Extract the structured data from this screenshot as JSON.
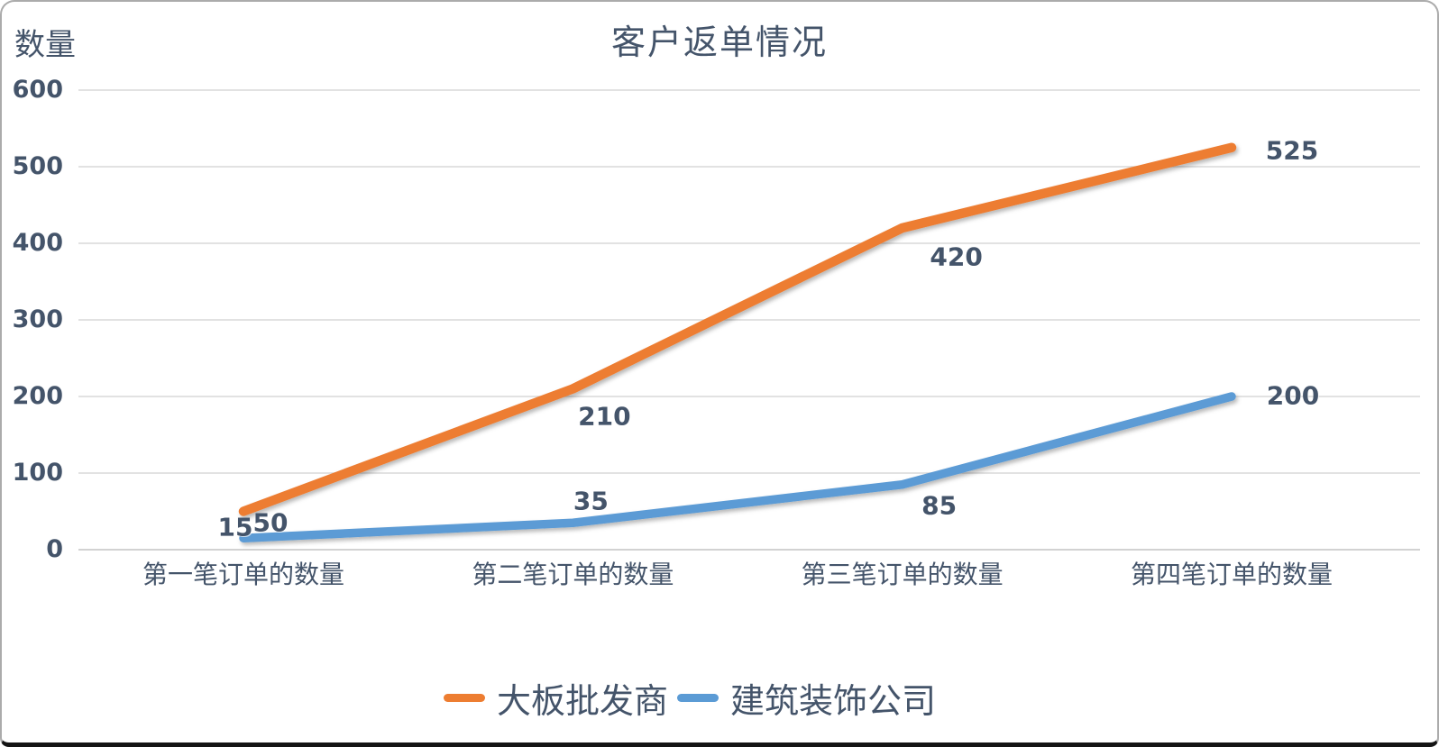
{
  "window": {
    "background": "#ffffff",
    "border_color": "#ababab",
    "bottom_edge_color": "#141414"
  },
  "colors": {
    "text": "#44546A",
    "gridline": "#D9D9D9",
    "axis_line": "#C3C3C3"
  },
  "chart_data": {
    "type": "line",
    "title": "客户返单情况",
    "ylabel": "数量",
    "xlabel": "",
    "categories": [
      "第一笔订单的数量",
      "第二笔订单的数量",
      "第三笔订单的数量",
      "第四笔订单的数量"
    ],
    "series": [
      {
        "name": "大板批发商",
        "color": "#ED7D31",
        "values": [
          50,
          210,
          420,
          525
        ]
      },
      {
        "name": "建筑装饰公司",
        "color": "#5B9BD5",
        "values": [
          15,
          35,
          85,
          200
        ]
      }
    ],
    "ylim": [
      0,
      600
    ],
    "yticks": [
      0,
      100,
      200,
      300,
      400,
      500,
      600
    ],
    "grid": true,
    "legend_position": "bottom",
    "data_labels": true
  }
}
